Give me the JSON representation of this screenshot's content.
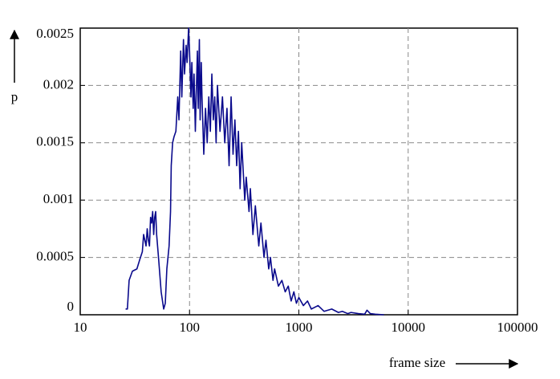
{
  "chart_data": {
    "type": "line",
    "x_label": "frame size",
    "y_label": "p",
    "xscale": "log",
    "grid": true,
    "xlim": [
      10,
      100000
    ],
    "xticks": [
      10,
      100,
      1000,
      10000,
      100000
    ],
    "ylim": [
      0,
      0.0025
    ],
    "yticks": [
      0,
      0.0005,
      0.001,
      0.0015,
      0.002,
      0.0025
    ],
    "series": [
      {
        "color": "#0a0a8c",
        "x": [
          26,
          27,
          28,
          30,
          33,
          35,
          37,
          38,
          40,
          41,
          42,
          43,
          44,
          45,
          46,
          47,
          48,
          49,
          50,
          52,
          55,
          58,
          60,
          62,
          65,
          67,
          68,
          70,
          72,
          75,
          78,
          80,
          83,
          85,
          88,
          90,
          93,
          95,
          98,
          100,
          103,
          105,
          108,
          110,
          113,
          115,
          118,
          120,
          123,
          125,
          128,
          130,
          135,
          140,
          145,
          150,
          155,
          160,
          165,
          170,
          175,
          180,
          190,
          200,
          210,
          220,
          230,
          240,
          250,
          260,
          270,
          280,
          290,
          300,
          320,
          330,
          350,
          360,
          380,
          400,
          430,
          450,
          480,
          500,
          530,
          550,
          580,
          600,
          650,
          700,
          750,
          800,
          850,
          900,
          950,
          1000,
          1100,
          1200,
          1300,
          1500,
          1700,
          2000,
          2300,
          2500,
          2800,
          3000,
          3500,
          4000,
          4200,
          4500,
          5000,
          6000
        ],
        "values": [
          5e-05,
          5e-05,
          0.0003,
          0.00038,
          0.0004,
          0.00048,
          0.00055,
          0.0007,
          0.0006,
          0.00075,
          0.00065,
          0.0006,
          0.00085,
          0.0008,
          0.0009,
          0.0007,
          0.00085,
          0.0009,
          0.0007,
          0.0005,
          0.0002,
          5e-05,
          0.0001,
          0.0004,
          0.0006,
          0.0009,
          0.0013,
          0.0015,
          0.00155,
          0.0016,
          0.0019,
          0.0017,
          0.0023,
          0.0019,
          0.0024,
          0.0021,
          0.00235,
          0.0022,
          0.0025,
          0.0023,
          0.0019,
          0.0022,
          0.0018,
          0.0021,
          0.0016,
          0.0019,
          0.0023,
          0.0018,
          0.0024,
          0.0017,
          0.0022,
          0.0019,
          0.0014,
          0.0018,
          0.0015,
          0.0019,
          0.0016,
          0.0021,
          0.0017,
          0.0019,
          0.0015,
          0.002,
          0.0016,
          0.0019,
          0.0015,
          0.0018,
          0.0013,
          0.0019,
          0.0014,
          0.0017,
          0.0013,
          0.0016,
          0.0011,
          0.0015,
          0.001,
          0.0012,
          0.0009,
          0.0011,
          0.0007,
          0.00095,
          0.0006,
          0.0008,
          0.0005,
          0.00065,
          0.0004,
          0.0005,
          0.0003,
          0.0004,
          0.00025,
          0.0003,
          0.0002,
          0.00025,
          0.00012,
          0.0002,
          0.0001,
          0.00015,
          8e-05,
          0.00012,
          5e-05,
          8e-05,
          3e-05,
          5e-05,
          2e-05,
          3e-05,
          1e-05,
          2e-05,
          1e-05,
          5e-06,
          4e-05,
          1e-05,
          5e-06,
          0
        ]
      }
    ]
  }
}
